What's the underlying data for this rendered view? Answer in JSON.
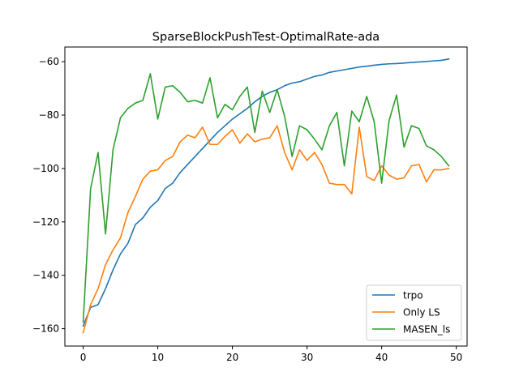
{
  "chart_data": {
    "type": "line",
    "title": "SparseBlockPushTest-OptimalRate-ada",
    "xlabel": "",
    "ylabel": "",
    "xlim": [
      -2.45,
      51.45
    ],
    "ylim": [
      -166.5,
      -54.5
    ],
    "xticks": [
      0,
      10,
      20,
      30,
      40,
      50
    ],
    "yticks": [
      -160,
      -140,
      -120,
      -100,
      -80,
      -60
    ],
    "legend_position": "lower-right",
    "grid": false,
    "x": [
      0,
      1,
      2,
      3,
      4,
      5,
      6,
      7,
      8,
      9,
      10,
      11,
      12,
      13,
      14,
      15,
      16,
      17,
      18,
      19,
      20,
      21,
      22,
      23,
      24,
      25,
      26,
      27,
      28,
      29,
      30,
      31,
      32,
      33,
      34,
      35,
      36,
      37,
      38,
      39,
      40,
      41,
      42,
      43,
      44,
      45,
      46,
      47,
      48,
      49
    ],
    "series": [
      {
        "name": "trpo",
        "color": "#1f77b4",
        "values": [
          -159,
          -152,
          -151,
          -145,
          -138,
          -132,
          -128,
          -121,
          -118.5,
          -114.5,
          -112,
          -107.5,
          -105.5,
          -101.5,
          -98.5,
          -95.5,
          -92.5,
          -89.5,
          -86.5,
          -84,
          -81.5,
          -79.5,
          -77.5,
          -75,
          -73,
          -71.5,
          -70.5,
          -69,
          -68,
          -67.5,
          -66.5,
          -65.5,
          -65,
          -64,
          -63.5,
          -63,
          -62.5,
          -62,
          -61.7,
          -61.3,
          -61,
          -60.8,
          -60.7,
          -60.5,
          -60.3,
          -60.1,
          -59.9,
          -59.7,
          -59.5,
          -59
        ]
      },
      {
        "name": "Only LS",
        "color": "#ff7f0e",
        "values": [
          -161.5,
          -151,
          -145,
          -136,
          -130.5,
          -126,
          -116.5,
          -110.5,
          -104,
          -101,
          -100.5,
          -97,
          -95.5,
          -90,
          -87.5,
          -88.5,
          -84.5,
          -91,
          -91,
          -88,
          -85.5,
          -90.5,
          -87,
          -90,
          -89,
          -88.5,
          -84,
          -94,
          -100.5,
          -93,
          -97,
          -94,
          -98.5,
          -105.5,
          -106,
          -106,
          -109.5,
          -84.5,
          -103,
          -104.5,
          -99,
          -102.5,
          -104,
          -103.5,
          -99,
          -98.5,
          -105,
          -100.5,
          -100.5,
          -100
        ]
      },
      {
        "name": "MASEN_ls",
        "color": "#2ca02c",
        "values": [
          -157.5,
          -107.5,
          -94,
          -124.5,
          -93,
          -81,
          -77.5,
          -75.5,
          -74.5,
          -64.5,
          -81.5,
          -69.5,
          -69,
          -71.5,
          -75,
          -74.5,
          -75.5,
          -66,
          -81,
          -76,
          -78,
          -73,
          -69.5,
          -86.5,
          -71,
          -79,
          -70.5,
          -80.5,
          -95.5,
          -84,
          -85.5,
          -89,
          -93,
          -84,
          -79,
          -99,
          -78.5,
          -82.5,
          -73,
          -82.5,
          -105.5,
          -82,
          -72.5,
          -92,
          -84,
          -85,
          -91.5,
          -93,
          -95.5,
          -99
        ]
      }
    ]
  }
}
